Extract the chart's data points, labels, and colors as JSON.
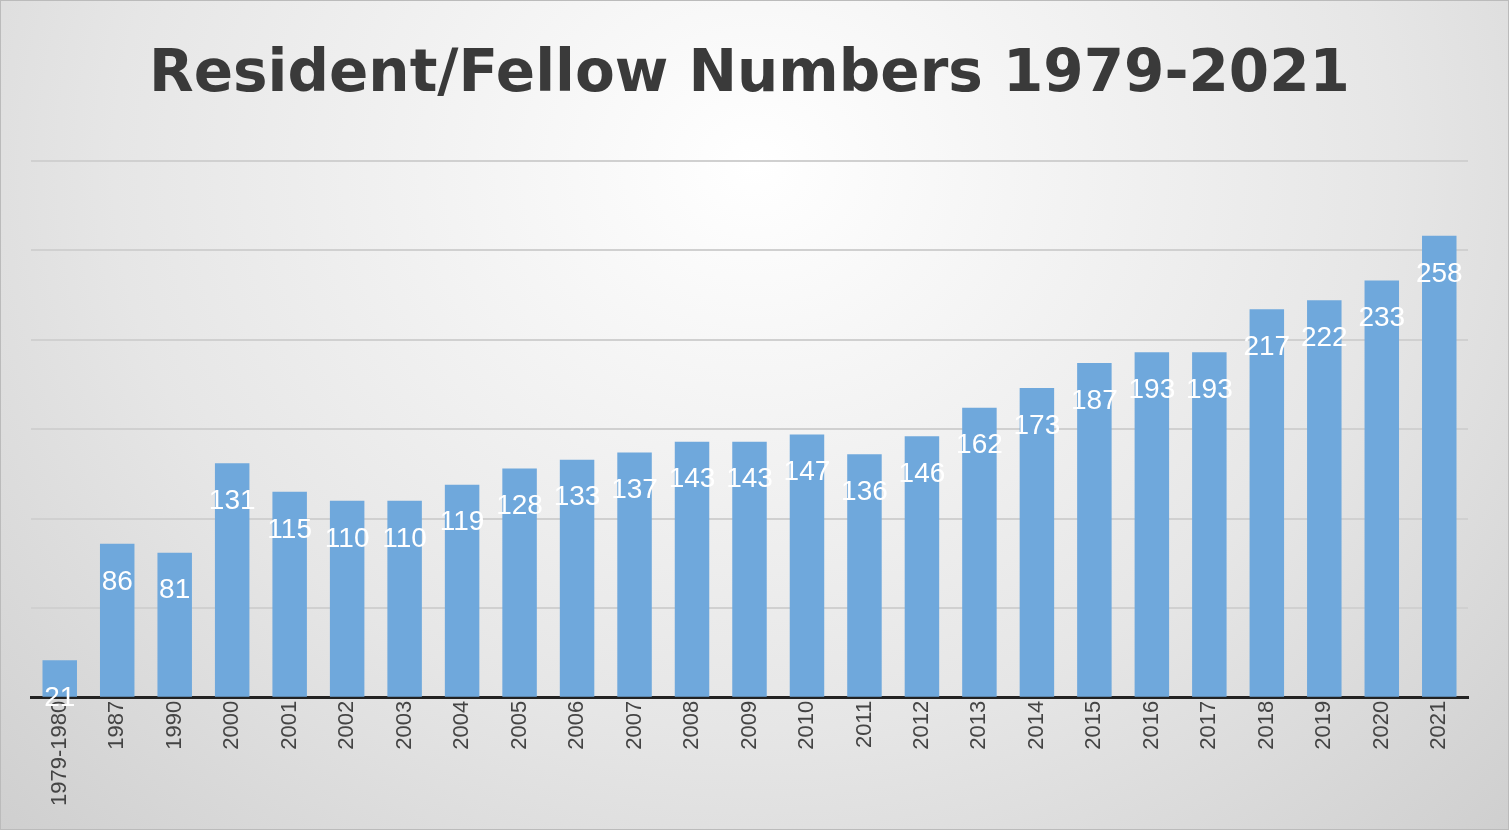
{
  "chart_data": {
    "type": "bar",
    "title": "Resident/Fellow Numbers 1979-2021",
    "categories": [
      "1979-1980",
      "1987",
      "1990",
      "2000",
      "2001",
      "2002",
      "2003",
      "2004",
      "2005",
      "2006",
      "2007",
      "2008",
      "2009",
      "2010",
      "2011",
      "2012",
      "2013",
      "2014",
      "2015",
      "2016",
      "2017",
      "2018",
      "2019",
      "2020",
      "2021"
    ],
    "values": [
      21,
      86,
      81,
      131,
      115,
      110,
      110,
      119,
      128,
      133,
      137,
      143,
      143,
      147,
      136,
      146,
      162,
      173,
      187,
      193,
      193,
      217,
      222,
      233,
      258
    ],
    "color": "#6fa8dc",
    "ylim": [
      0,
      300
    ],
    "yticks": [
      {
        "value": 0,
        "label": null
      },
      {
        "value": 50,
        "label": null
      },
      {
        "value": 100,
        "label": null
      },
      {
        "value": 150,
        "label": null
      },
      {
        "value": 200,
        "label": null
      },
      {
        "value": 250,
        "label": null
      },
      {
        "value": 300,
        "label": null
      }
    ],
    "tick_labels": "x",
    "grid": "y",
    "data_labels": true,
    "legend": false
  }
}
